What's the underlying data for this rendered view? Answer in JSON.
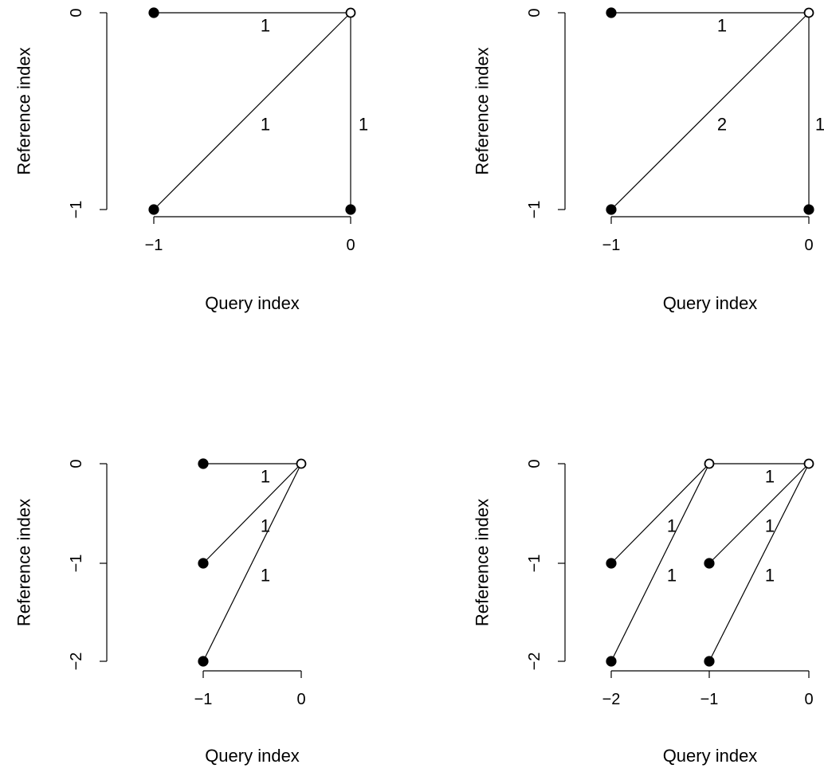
{
  "panels": [
    {
      "xlabel": "Query index",
      "ylabel": "Reference index",
      "x_ticks": [
        "−1",
        "0"
      ],
      "y_ticks": [
        "−1",
        "0"
      ],
      "open_nodes": [
        [
          0,
          0
        ]
      ],
      "filled_nodes": [
        [
          -1,
          0
        ],
        [
          -1,
          -1
        ],
        [
          0,
          -1
        ]
      ],
      "edges": [
        {
          "from": [
            -1,
            0
          ],
          "to": [
            0,
            0
          ],
          "weight": "1"
        },
        {
          "from": [
            -1,
            -1
          ],
          "to": [
            0,
            0
          ],
          "weight": "1"
        },
        {
          "from": [
            0,
            -1
          ],
          "to": [
            0,
            0
          ],
          "weight": "1"
        }
      ]
    },
    {
      "xlabel": "Query index",
      "ylabel": "Reference index",
      "x_ticks": [
        "−1",
        "0"
      ],
      "y_ticks": [
        "−1",
        "0"
      ],
      "open_nodes": [
        [
          0,
          0
        ]
      ],
      "filled_nodes": [
        [
          -1,
          0
        ],
        [
          -1,
          -1
        ],
        [
          0,
          -1
        ]
      ],
      "edges": [
        {
          "from": [
            -1,
            0
          ],
          "to": [
            0,
            0
          ],
          "weight": "1"
        },
        {
          "from": [
            -1,
            -1
          ],
          "to": [
            0,
            0
          ],
          "weight": "2"
        },
        {
          "from": [
            0,
            -1
          ],
          "to": [
            0,
            0
          ],
          "weight": "1"
        }
      ]
    },
    {
      "xlabel": "Query index",
      "ylabel": "Reference index",
      "x_ticks": [
        "−1",
        "0"
      ],
      "y_ticks": [
        "−2",
        "−1",
        "0"
      ],
      "open_nodes": [
        [
          0,
          0
        ]
      ],
      "filled_nodes": [
        [
          -1,
          0
        ],
        [
          -1,
          -1
        ],
        [
          -1,
          -2
        ]
      ],
      "edges": [
        {
          "from": [
            -1,
            0
          ],
          "to": [
            0,
            0
          ],
          "weight": "1"
        },
        {
          "from": [
            -1,
            -1
          ],
          "to": [
            0,
            0
          ],
          "weight": "1"
        },
        {
          "from": [
            -1,
            -2
          ],
          "to": [
            0,
            0
          ],
          "weight": "1"
        }
      ]
    },
    {
      "xlabel": "Query index",
      "ylabel": "Reference index",
      "x_ticks": [
        "−2",
        "−1",
        "0"
      ],
      "y_ticks": [
        "−2",
        "−1",
        "0"
      ],
      "open_nodes": [
        [
          -1,
          0
        ],
        [
          0,
          0
        ]
      ],
      "filled_nodes": [
        [
          -2,
          -1
        ],
        [
          -2,
          -2
        ],
        [
          -1,
          -1
        ],
        [
          -1,
          -2
        ]
      ],
      "edges": [
        {
          "from": [
            -1,
            0
          ],
          "to": [
            0,
            0
          ],
          "weight": "1"
        },
        {
          "from": [
            -2,
            -1
          ],
          "to": [
            -1,
            0
          ],
          "weight": "1"
        },
        {
          "from": [
            -2,
            -2
          ],
          "to": [
            -1,
            0
          ],
          "weight": "1"
        },
        {
          "from": [
            -1,
            -1
          ],
          "to": [
            0,
            0
          ],
          "weight": "1"
        },
        {
          "from": [
            -1,
            -2
          ],
          "to": [
            0,
            0
          ],
          "weight": "1"
        }
      ]
    }
  ]
}
